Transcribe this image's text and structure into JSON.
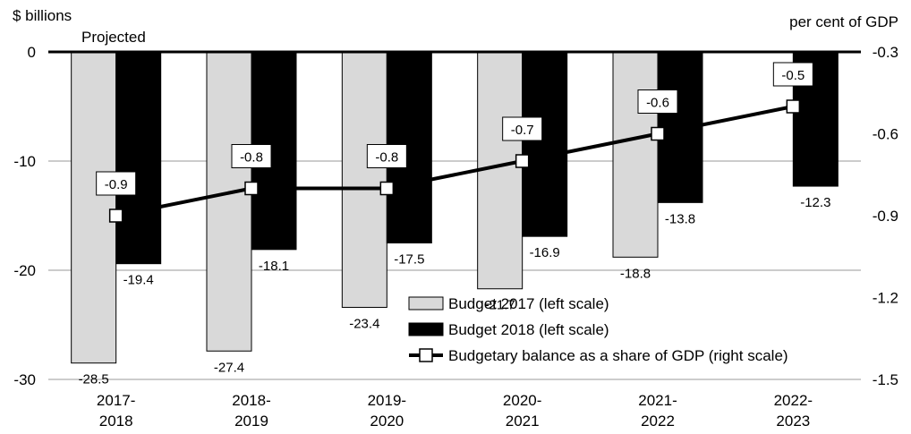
{
  "chart_data": {
    "type": "bar",
    "title": "",
    "left_axis_label": "$ billions",
    "right_axis_label": "per cent of GDP",
    "annotation": "Projected",
    "categories": [
      [
        "2017-",
        "2018"
      ],
      [
        "2018-",
        "2019"
      ],
      [
        "2019-",
        "2020"
      ],
      [
        "2020-",
        "2021"
      ],
      [
        "2021-",
        "2022"
      ],
      [
        "2022-",
        "2023"
      ]
    ],
    "left_ylim": [
      -30,
      0
    ],
    "left_ticks": [
      "0",
      "-10",
      "-20",
      "-30"
    ],
    "right_ylim": [
      -1.5,
      -0.3
    ],
    "right_ticks": [
      "-0.3",
      "-0.6",
      "-0.9",
      "-1.2",
      "-1.5"
    ],
    "grid": true,
    "legend_position": "bottom-right",
    "series": [
      {
        "name": "Budget 2017 (left scale)",
        "kind": "bar",
        "axis": "left",
        "color": "#d9d9d9",
        "values": [
          -28.5,
          -27.4,
          -23.4,
          -21.7,
          -18.8,
          null
        ],
        "labels": [
          "-28.5",
          "-27.4",
          "-23.4",
          "-21.7",
          "-18.8",
          ""
        ]
      },
      {
        "name": "Budget 2018 (left scale)",
        "kind": "bar",
        "axis": "left",
        "color": "#000000",
        "values": [
          -19.4,
          -18.1,
          -17.5,
          -16.9,
          -13.8,
          -12.3
        ],
        "labels": [
          "-19.4",
          "-18.1",
          "-17.5",
          "-16.9",
          "-13.8",
          "-12.3"
        ]
      },
      {
        "name": "Budgetary balance as a share of GDP (right scale)",
        "kind": "line",
        "axis": "right",
        "color": "#000000",
        "values": [
          -0.9,
          -0.8,
          -0.8,
          -0.7,
          -0.6,
          -0.5
        ],
        "labels": [
          "-0.9",
          "-0.8",
          "-0.8",
          "-0.7",
          "-0.6",
          "-0.5"
        ]
      }
    ]
  }
}
